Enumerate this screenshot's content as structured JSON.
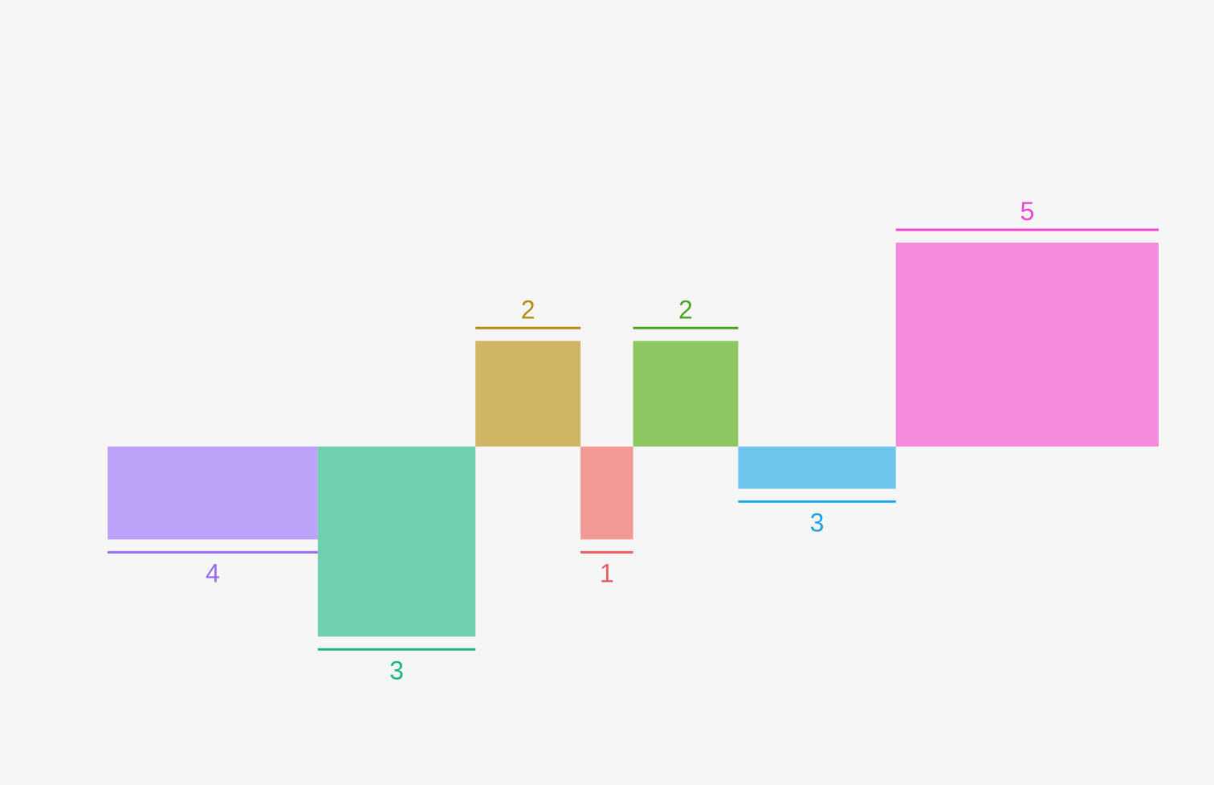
{
  "chart_data": {
    "type": "bar",
    "variable_width": true,
    "categories": [
      "",
      "",
      "",
      "",
      "",
      "",
      ""
    ],
    "widths": [
      4,
      3,
      2,
      1,
      2,
      3,
      5
    ],
    "values": [
      -0.88,
      -1.8,
      1.0,
      -0.88,
      1.0,
      -0.4,
      1.93
    ],
    "data_labels": [
      "4",
      "3",
      "2",
      "1",
      "2",
      "3",
      "5"
    ],
    "colors": [
      "#bca3f9",
      "#70cfb0",
      "#d0b565",
      "#f49a96",
      "#8dc762",
      "#6ec4ea",
      "#f68adc"
    ],
    "label_colors": [
      "#9a6cf4",
      "#1cb482",
      "#b58a15",
      "#e85f5f",
      "#4aa51c",
      "#1ea1e2",
      "#ef45cf"
    ],
    "ylim": [
      -3,
      4
    ],
    "grid": false,
    "legend": "none",
    "title": "",
    "xlabel": "",
    "ylabel": ""
  }
}
